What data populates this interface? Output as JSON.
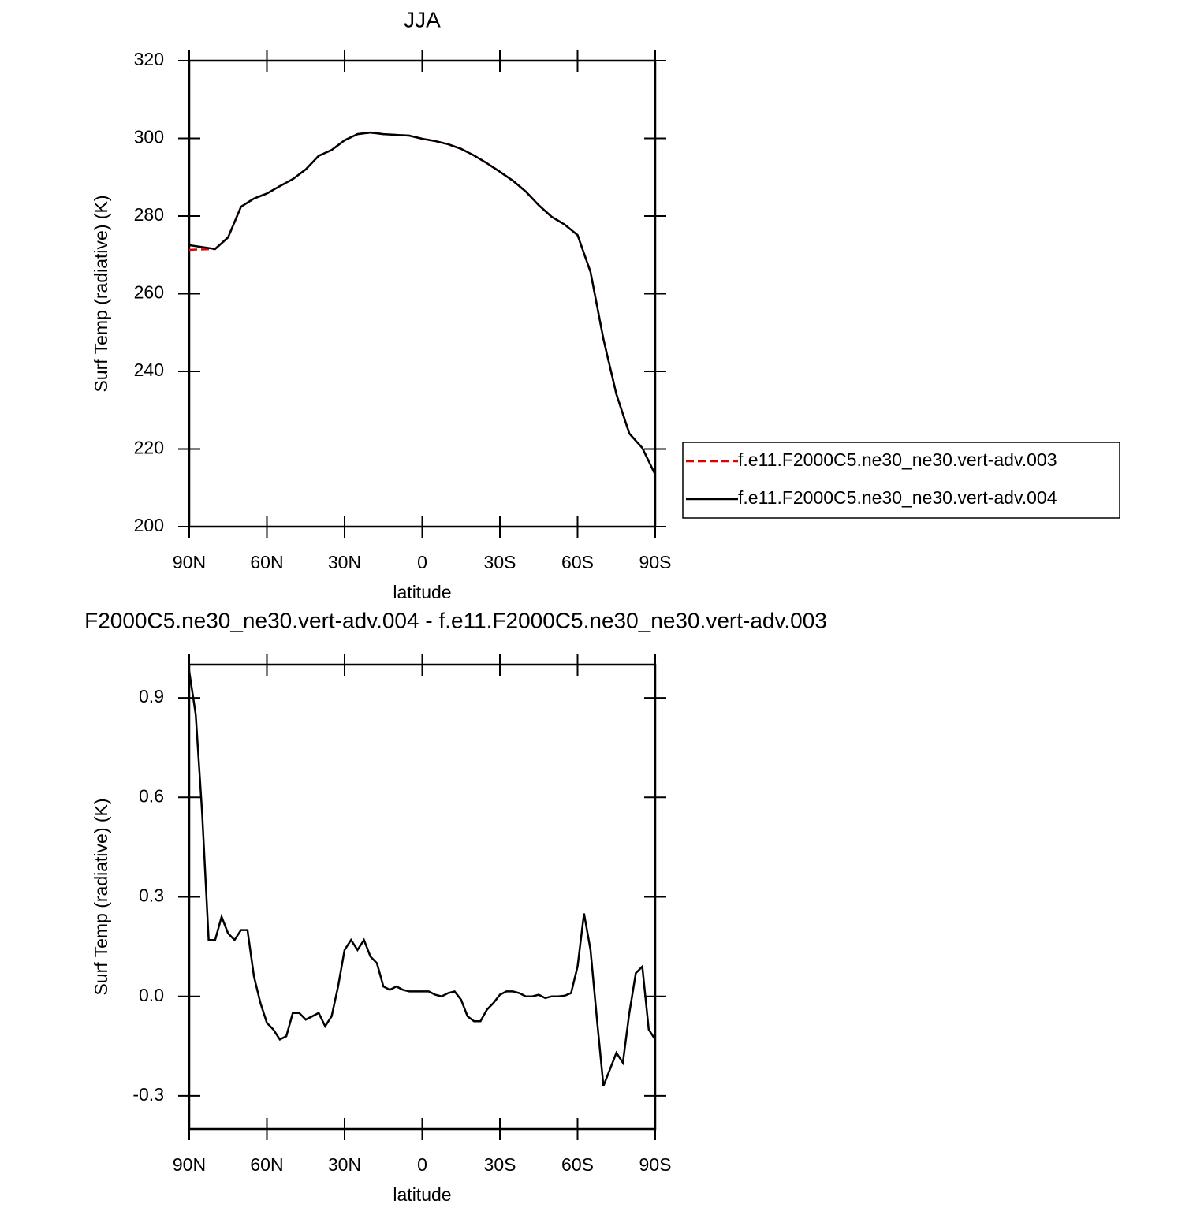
{
  "chart_data": [
    {
      "type": "line",
      "title": "JJA",
      "xlabel": "latitude",
      "ylabel": "Surf Temp (radiative) (K)",
      "x": [
        90,
        85,
        80,
        75,
        70,
        65,
        60,
        55,
        50,
        45,
        40,
        35,
        30,
        25,
        20,
        15,
        10,
        5,
        0,
        -5,
        -10,
        -15,
        -20,
        -25,
        -30,
        -35,
        -40,
        -45,
        -50,
        -55,
        -60,
        -65,
        -70,
        -75,
        -80,
        -85,
        -90
      ],
      "series": [
        {
          "name": "f.e11.F2000C5.ne30_ne30.vert-adv.003",
          "color": "#e00000",
          "dash": true,
          "values": [
            271.3,
            271.4,
            271.5,
            274.5,
            282.4,
            284.5,
            285.8,
            287.7,
            289.5,
            292,
            295.5,
            297,
            299.5,
            301.1,
            301.5,
            301.1,
            300.9,
            300.7,
            299.9,
            299.3,
            298.5,
            297.3,
            295.6,
            293.6,
            291.4,
            289.1,
            286.3,
            282.8,
            279.8,
            277.8,
            275.1,
            265.6,
            248.3,
            234.1,
            224,
            220.3,
            213.4
          ]
        },
        {
          "name": "f.e11.F2000C5.ne30_ne30.vert-adv.004",
          "color": "#000000",
          "dash": false,
          "values": [
            272.5,
            272,
            271.5,
            274.5,
            282.4,
            284.5,
            285.8,
            287.7,
            289.5,
            292,
            295.5,
            297,
            299.5,
            301.1,
            301.5,
            301.1,
            300.9,
            300.7,
            299.9,
            299.3,
            298.5,
            297.3,
            295.6,
            293.6,
            291.4,
            289.1,
            286.3,
            282.8,
            279.8,
            277.8,
            275.1,
            265.6,
            248.3,
            234.1,
            224,
            220.3,
            213.4
          ]
        }
      ],
      "xlim": [
        90,
        -90
      ],
      "xticks": [
        {
          "value": 90,
          "label": "90N"
        },
        {
          "value": 60,
          "label": "60N"
        },
        {
          "value": 30,
          "label": "30N"
        },
        0,
        {
          "value": -30,
          "label": "30S"
        },
        {
          "value": -60,
          "label": "60S"
        },
        {
          "value": -90,
          "label": "90S"
        }
      ],
      "ylim": [
        200,
        320
      ],
      "yticks": [
        200,
        220,
        240,
        260,
        280,
        300,
        320
      ],
      "legend": "right"
    },
    {
      "type": "line",
      "title": "F2000C5.ne30_ne30.vert-adv.004 - f.e11.F2000C5.ne30_ne30.vert-adv.003",
      "xlabel": "latitude",
      "ylabel": "Surf Temp (radiative) (K)",
      "x": [
        90,
        87.5,
        85,
        82.5,
        80,
        77.5,
        75,
        72.5,
        70,
        67.5,
        65,
        62.5,
        60,
        57.5,
        55,
        52.5,
        50,
        47.5,
        45,
        42.5,
        40,
        37.5,
        35,
        32.5,
        30,
        27.5,
        25,
        22.5,
        20,
        17.5,
        15,
        12.5,
        10,
        7.5,
        5,
        2.5,
        0,
        -2.5,
        -5,
        -7.5,
        -10,
        -12.5,
        -15,
        -17.5,
        -20,
        -22.5,
        -25,
        -27.5,
        -30,
        -32.5,
        -35,
        -37.5,
        -40,
        -42.5,
        -45,
        -47.5,
        -50,
        -52.5,
        -55,
        -57.5,
        -60,
        -62.5,
        -65,
        -67.5,
        -70,
        -72.5,
        -75,
        -77.5,
        -80,
        -82.5,
        -85,
        -87.5,
        -90
      ],
      "series": [
        {
          "color": "#000000",
          "dash": false,
          "values": [
            0.98,
            0.85,
            0.55,
            0.17,
            0.17,
            0.24,
            0.19,
            0.17,
            0.2,
            0.2,
            0.06,
            -0.02,
            -0.08,
            -0.1,
            -0.13,
            -0.12,
            -0.05,
            -0.05,
            -0.07,
            -0.06,
            -0.05,
            -0.09,
            -0.06,
            0.03,
            0.14,
            0.17,
            0.14,
            0.17,
            0.12,
            0.1,
            0.03,
            0.02,
            0.03,
            0.02,
            0.015,
            0.015,
            0.015,
            0.015,
            0.005,
            0.0,
            0.01,
            0.015,
            -0.01,
            -0.06,
            -0.075,
            -0.075,
            -0.04,
            -0.02,
            0.005,
            0.015,
            0.015,
            0.01,
            0.0,
            0.0,
            0.005,
            -0.005,
            0.0,
            0.0,
            0.002,
            0.01,
            0.09,
            0.25,
            0.14,
            -0.07,
            -0.27,
            -0.22,
            -0.17,
            -0.2,
            -0.05,
            0.07,
            0.09,
            -0.1,
            -0.13
          ]
        }
      ],
      "xlim": [
        90,
        -90
      ],
      "xticks": [
        {
          "value": 90,
          "label": "90N"
        },
        {
          "value": 60,
          "label": "60N"
        },
        {
          "value": 30,
          "label": "30N"
        },
        0,
        {
          "value": -30,
          "label": "30S"
        },
        {
          "value": -60,
          "label": "60S"
        },
        {
          "value": -90,
          "label": "90S"
        }
      ],
      "ylim": [
        -0.4,
        1.0
      ],
      "yticks": [
        -0.3,
        {
          "value": 0,
          "label": "0.0"
        },
        0.3,
        0.6,
        0.9
      ]
    }
  ]
}
